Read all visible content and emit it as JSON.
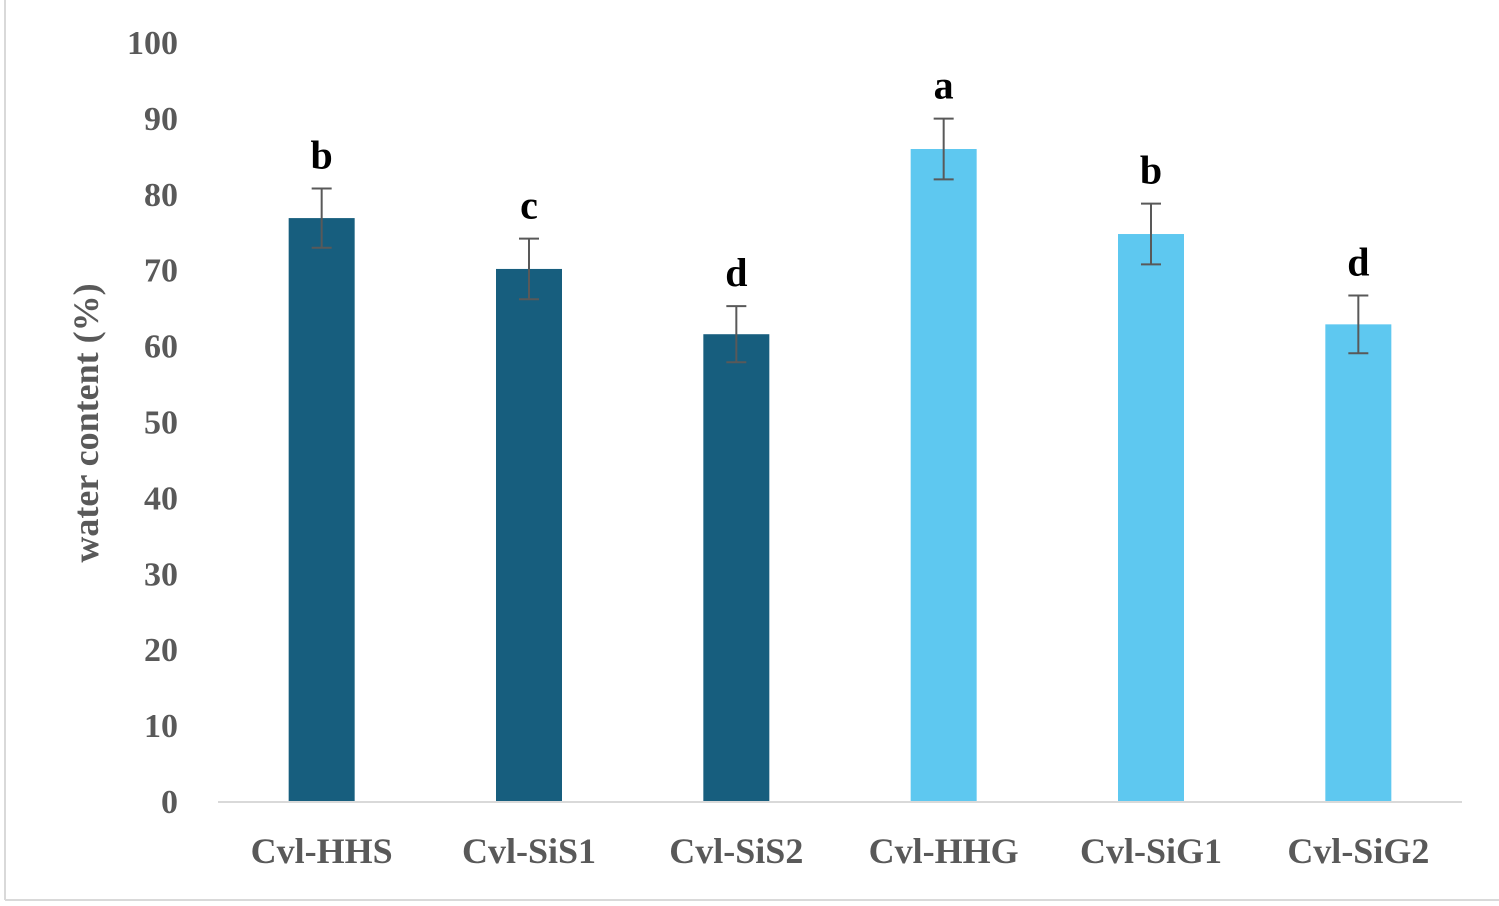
{
  "chart_data": {
    "type": "bar",
    "title": "",
    "xlabel": "",
    "ylabel": "water content (%)",
    "ylim": [
      0,
      100
    ],
    "yticks": [
      0,
      10,
      20,
      30,
      40,
      50,
      60,
      70,
      80,
      90,
      100
    ],
    "grid": false,
    "categories": [
      "Cvl-HHS",
      "Cvl-SiS1",
      "Cvl-SiS2",
      "Cvl-HHG",
      "Cvl-SiG1",
      "Cvl-SiG2"
    ],
    "values": [
      76.8,
      70.1,
      61.5,
      85.9,
      74.7,
      62.8
    ],
    "errors": [
      3.9,
      4.0,
      3.7,
      4.0,
      4.0,
      3.8
    ],
    "significance_letters": [
      "b",
      "c",
      "d",
      "a",
      "b",
      "d"
    ],
    "bar_colors": [
      "#175e7e",
      "#175e7e",
      "#175e7e",
      "#5ec8f0",
      "#5ec8f0",
      "#5ec8f0"
    ],
    "error_bar_color": "#595959"
  }
}
